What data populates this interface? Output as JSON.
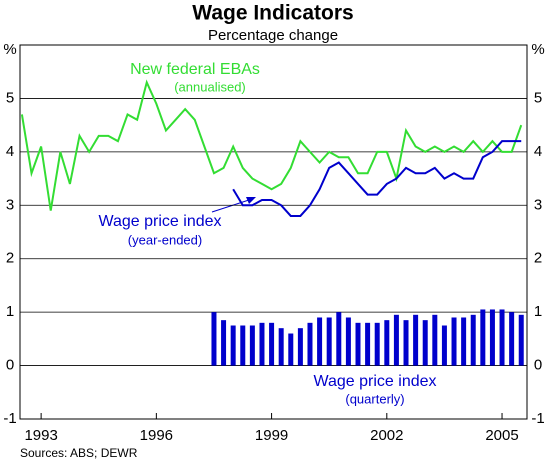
{
  "chart_data": {
    "type": "combo",
    "title": "Wage Indicators",
    "subtitle": "Percentage change",
    "y_label": "%",
    "source": "Sources: ABS; DEWR",
    "xlim": [
      1992.45,
      2005.65
    ],
    "xticks": [
      1993,
      1996,
      1999,
      2002,
      2005
    ],
    "ylim": [
      -1,
      6
    ],
    "yticks": [
      -1,
      0,
      1,
      2,
      3,
      4,
      5
    ],
    "grid": true,
    "annotations": [
      "New federal EBAs",
      "(annualised)",
      "Wage price index",
      "(year-ended)",
      "Wage price index",
      "(quarterly)"
    ],
    "series": [
      {
        "name": "New federal EBAs",
        "type": "line",
        "color": "#33dd33",
        "x": [
          1992.5,
          1992.75,
          1993,
          1993.25,
          1993.5,
          1993.75,
          1994,
          1994.25,
          1994.5,
          1994.75,
          1995,
          1995.25,
          1995.5,
          1995.75,
          1996,
          1996.25,
          1996.5,
          1996.75,
          1997,
          1997.25,
          1997.5,
          1997.75,
          1998,
          1998.25,
          1998.5,
          1998.75,
          1999,
          1999.25,
          1999.5,
          1999.75,
          2000,
          2000.25,
          2000.5,
          2000.75,
          2001,
          2001.25,
          2001.5,
          2001.75,
          2002,
          2002.25,
          2002.5,
          2002.75,
          2003,
          2003.25,
          2003.5,
          2003.75,
          2004,
          2004.25,
          2004.5,
          2004.75,
          2005,
          2005.25,
          2005.5
        ],
        "values": [
          4.7,
          3.6,
          4.1,
          2.9,
          4.0,
          3.4,
          4.3,
          4.0,
          4.3,
          4.3,
          4.2,
          4.7,
          4.6,
          5.3,
          4.9,
          4.4,
          4.6,
          4.8,
          4.6,
          4.1,
          3.6,
          3.7,
          4.1,
          3.7,
          3.5,
          3.4,
          3.3,
          3.4,
          3.7,
          4.2,
          4.0,
          3.8,
          4.0,
          3.9,
          3.9,
          3.6,
          3.6,
          4.0,
          4.0,
          3.5,
          4.4,
          4.1,
          4.0,
          4.1,
          4.0,
          4.1,
          4.0,
          4.2,
          4.0,
          4.2,
          4.0,
          4.0,
          4.5
        ]
      },
      {
        "name": "Wage price index (year-ended)",
        "type": "line",
        "color": "#0000cc",
        "x": [
          1998,
          1998.25,
          1998.5,
          1998.75,
          1999,
          1999.25,
          1999.5,
          1999.75,
          2000,
          2000.25,
          2000.5,
          2000.75,
          2001,
          2001.25,
          2001.5,
          2001.75,
          2002,
          2002.25,
          2002.5,
          2002.75,
          2003,
          2003.25,
          2003.5,
          2003.75,
          2004,
          2004.25,
          2004.5,
          2004.75,
          2005,
          2005.25,
          2005.5
        ],
        "values": [
          3.3,
          3.0,
          3.0,
          3.1,
          3.1,
          3.0,
          2.8,
          2.8,
          3.0,
          3.3,
          3.7,
          3.8,
          3.6,
          3.4,
          3.2,
          3.2,
          3.4,
          3.5,
          3.7,
          3.6,
          3.6,
          3.7,
          3.5,
          3.6,
          3.5,
          3.5,
          3.9,
          4.0,
          4.2,
          4.2,
          4.2
        ]
      },
      {
        "name": "Wage price index (quarterly)",
        "type": "bar",
        "color": "#0000cc",
        "x": [
          1997.5,
          1997.75,
          1998,
          1998.25,
          1998.5,
          1998.75,
          1999,
          1999.25,
          1999.5,
          1999.75,
          2000,
          2000.25,
          2000.5,
          2000.75,
          2001,
          2001.25,
          2001.5,
          2001.75,
          2002,
          2002.25,
          2002.5,
          2002.75,
          2003,
          2003.25,
          2003.5,
          2003.75,
          2004,
          2004.25,
          2004.5,
          2004.75,
          2005,
          2005.25,
          2005.5
        ],
        "values": [
          1.0,
          0.85,
          0.75,
          0.75,
          0.75,
          0.8,
          0.8,
          0.7,
          0.6,
          0.7,
          0.8,
          0.9,
          0.9,
          1.0,
          0.9,
          0.8,
          0.8,
          0.8,
          0.85,
          0.95,
          0.85,
          0.95,
          0.85,
          0.95,
          0.75,
          0.9,
          0.9,
          0.95,
          1.05,
          1.05,
          1.05,
          1.0,
          0.95
        ]
      }
    ]
  }
}
